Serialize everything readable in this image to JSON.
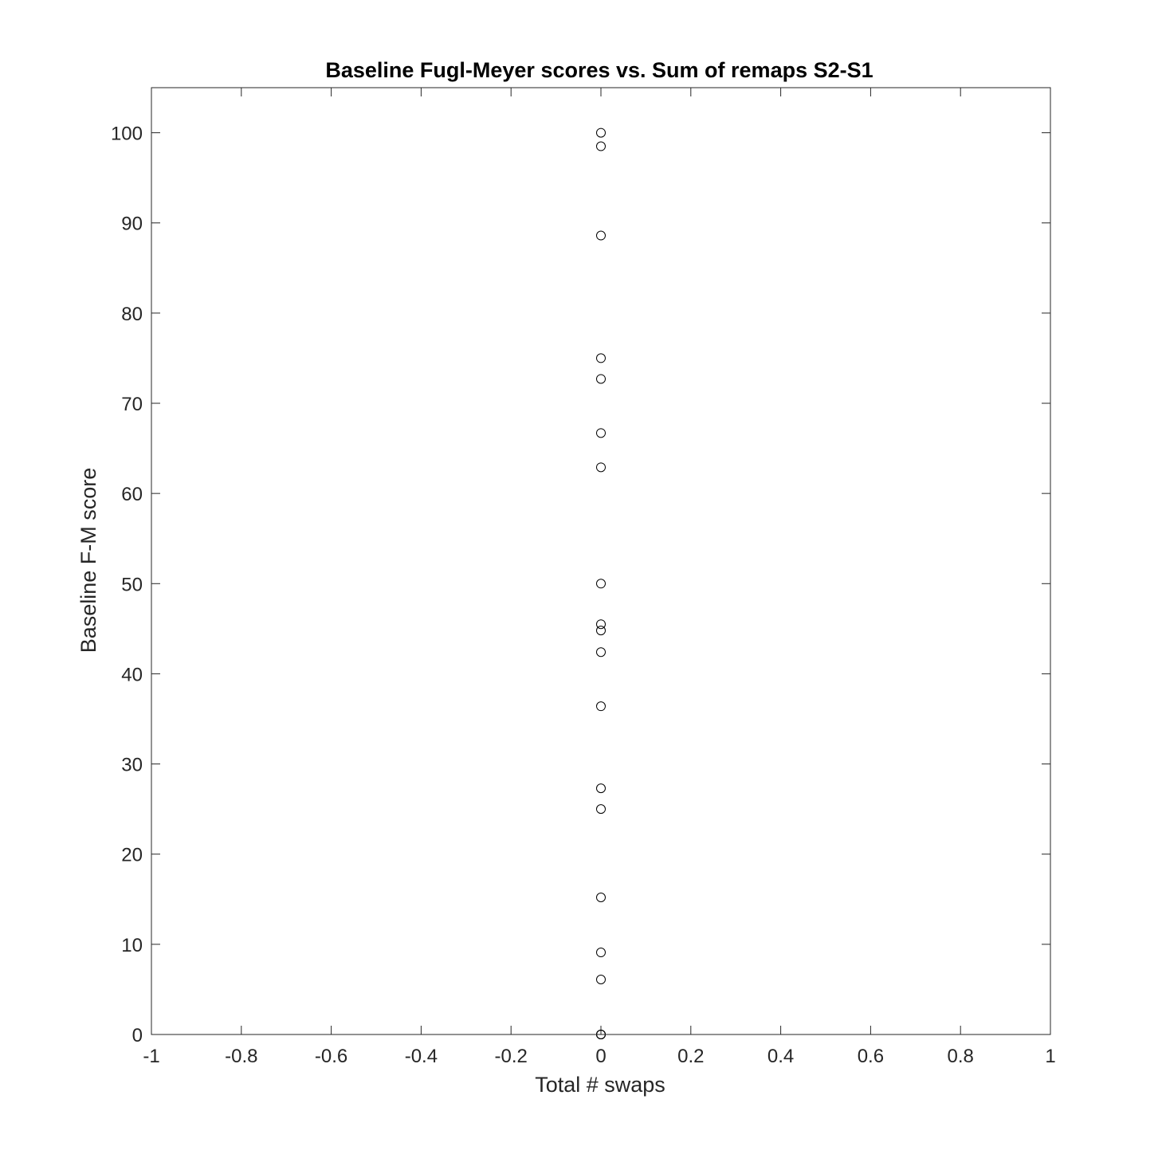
{
  "chart_data": {
    "type": "scatter",
    "title": "Baseline Fugl-Meyer scores vs. Sum of remaps S2-S1",
    "xlabel": "Total # swaps",
    "ylabel": "Baseline F-M score",
    "xlim": [
      -1,
      1
    ],
    "ylim": [
      0,
      105
    ],
    "x_ticks": [
      -1,
      -0.8,
      -0.6,
      -0.4,
      -0.2,
      0,
      0.2,
      0.4,
      0.6,
      0.8,
      1
    ],
    "x_tick_labels": [
      "-1",
      "-0.8",
      "-0.6",
      "-0.4",
      "-0.2",
      "0",
      "0.2",
      "0.4",
      "0.6",
      "0.8",
      "1"
    ],
    "y_ticks": [
      0,
      10,
      20,
      30,
      40,
      50,
      60,
      70,
      80,
      90,
      100
    ],
    "y_tick_labels": [
      "0",
      "10",
      "20",
      "30",
      "40",
      "50",
      "60",
      "70",
      "80",
      "90",
      "100"
    ],
    "grid": false,
    "box": true,
    "marker": "open-circle",
    "marker_color": "#000000",
    "series": [
      {
        "x": [
          0,
          0,
          0,
          0,
          0,
          0,
          0,
          0,
          0,
          0,
          0,
          0,
          0,
          0,
          0,
          0,
          0,
          0,
          0,
          0
        ],
        "y": [
          100,
          98.5,
          88.6,
          75,
          72.7,
          66.7,
          62.9,
          50,
          45.5,
          44.8,
          42.4,
          36.4,
          27.3,
          25,
          15.2,
          9.1,
          6.1,
          0,
          0,
          0
        ]
      }
    ]
  }
}
